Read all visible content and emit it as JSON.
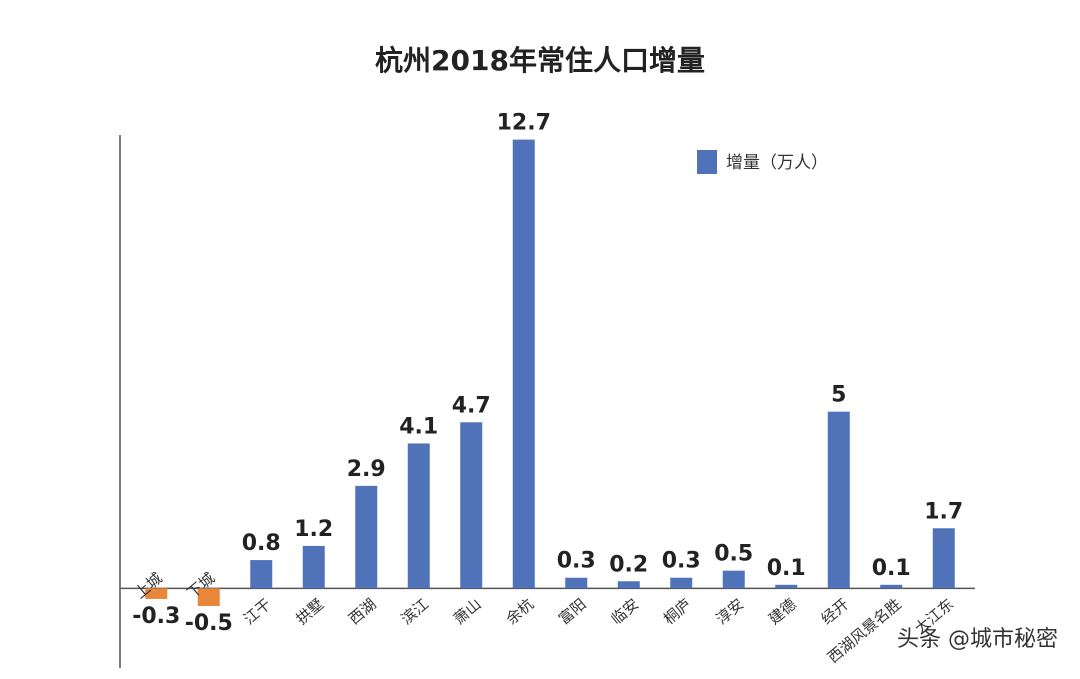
{
  "chart_data": {
    "type": "bar",
    "title": "杭州2018年常住人口增量",
    "categories": [
      "上城",
      "下城",
      "江干",
      "拱墅",
      "西湖",
      "滨江",
      "萧山",
      "余杭",
      "富阳",
      "临安",
      "桐庐",
      "淳安",
      "建德",
      "经开",
      "西湖风景名胜",
      "大江东"
    ],
    "series": [
      {
        "name": "增量（万人）",
        "color": "#4f72b8",
        "negative_color": "#e8873a",
        "values": [
          -0.3,
          -0.5,
          0.8,
          1.2,
          2.9,
          4.1,
          4.7,
          12.7,
          0.3,
          0.2,
          0.3,
          0.5,
          0.1,
          5,
          0.1,
          1.7
        ]
      }
    ],
    "ylim": [
      -0.5,
      13
    ],
    "legend": "upper right"
  },
  "watermark": "头条 @城市秘密"
}
